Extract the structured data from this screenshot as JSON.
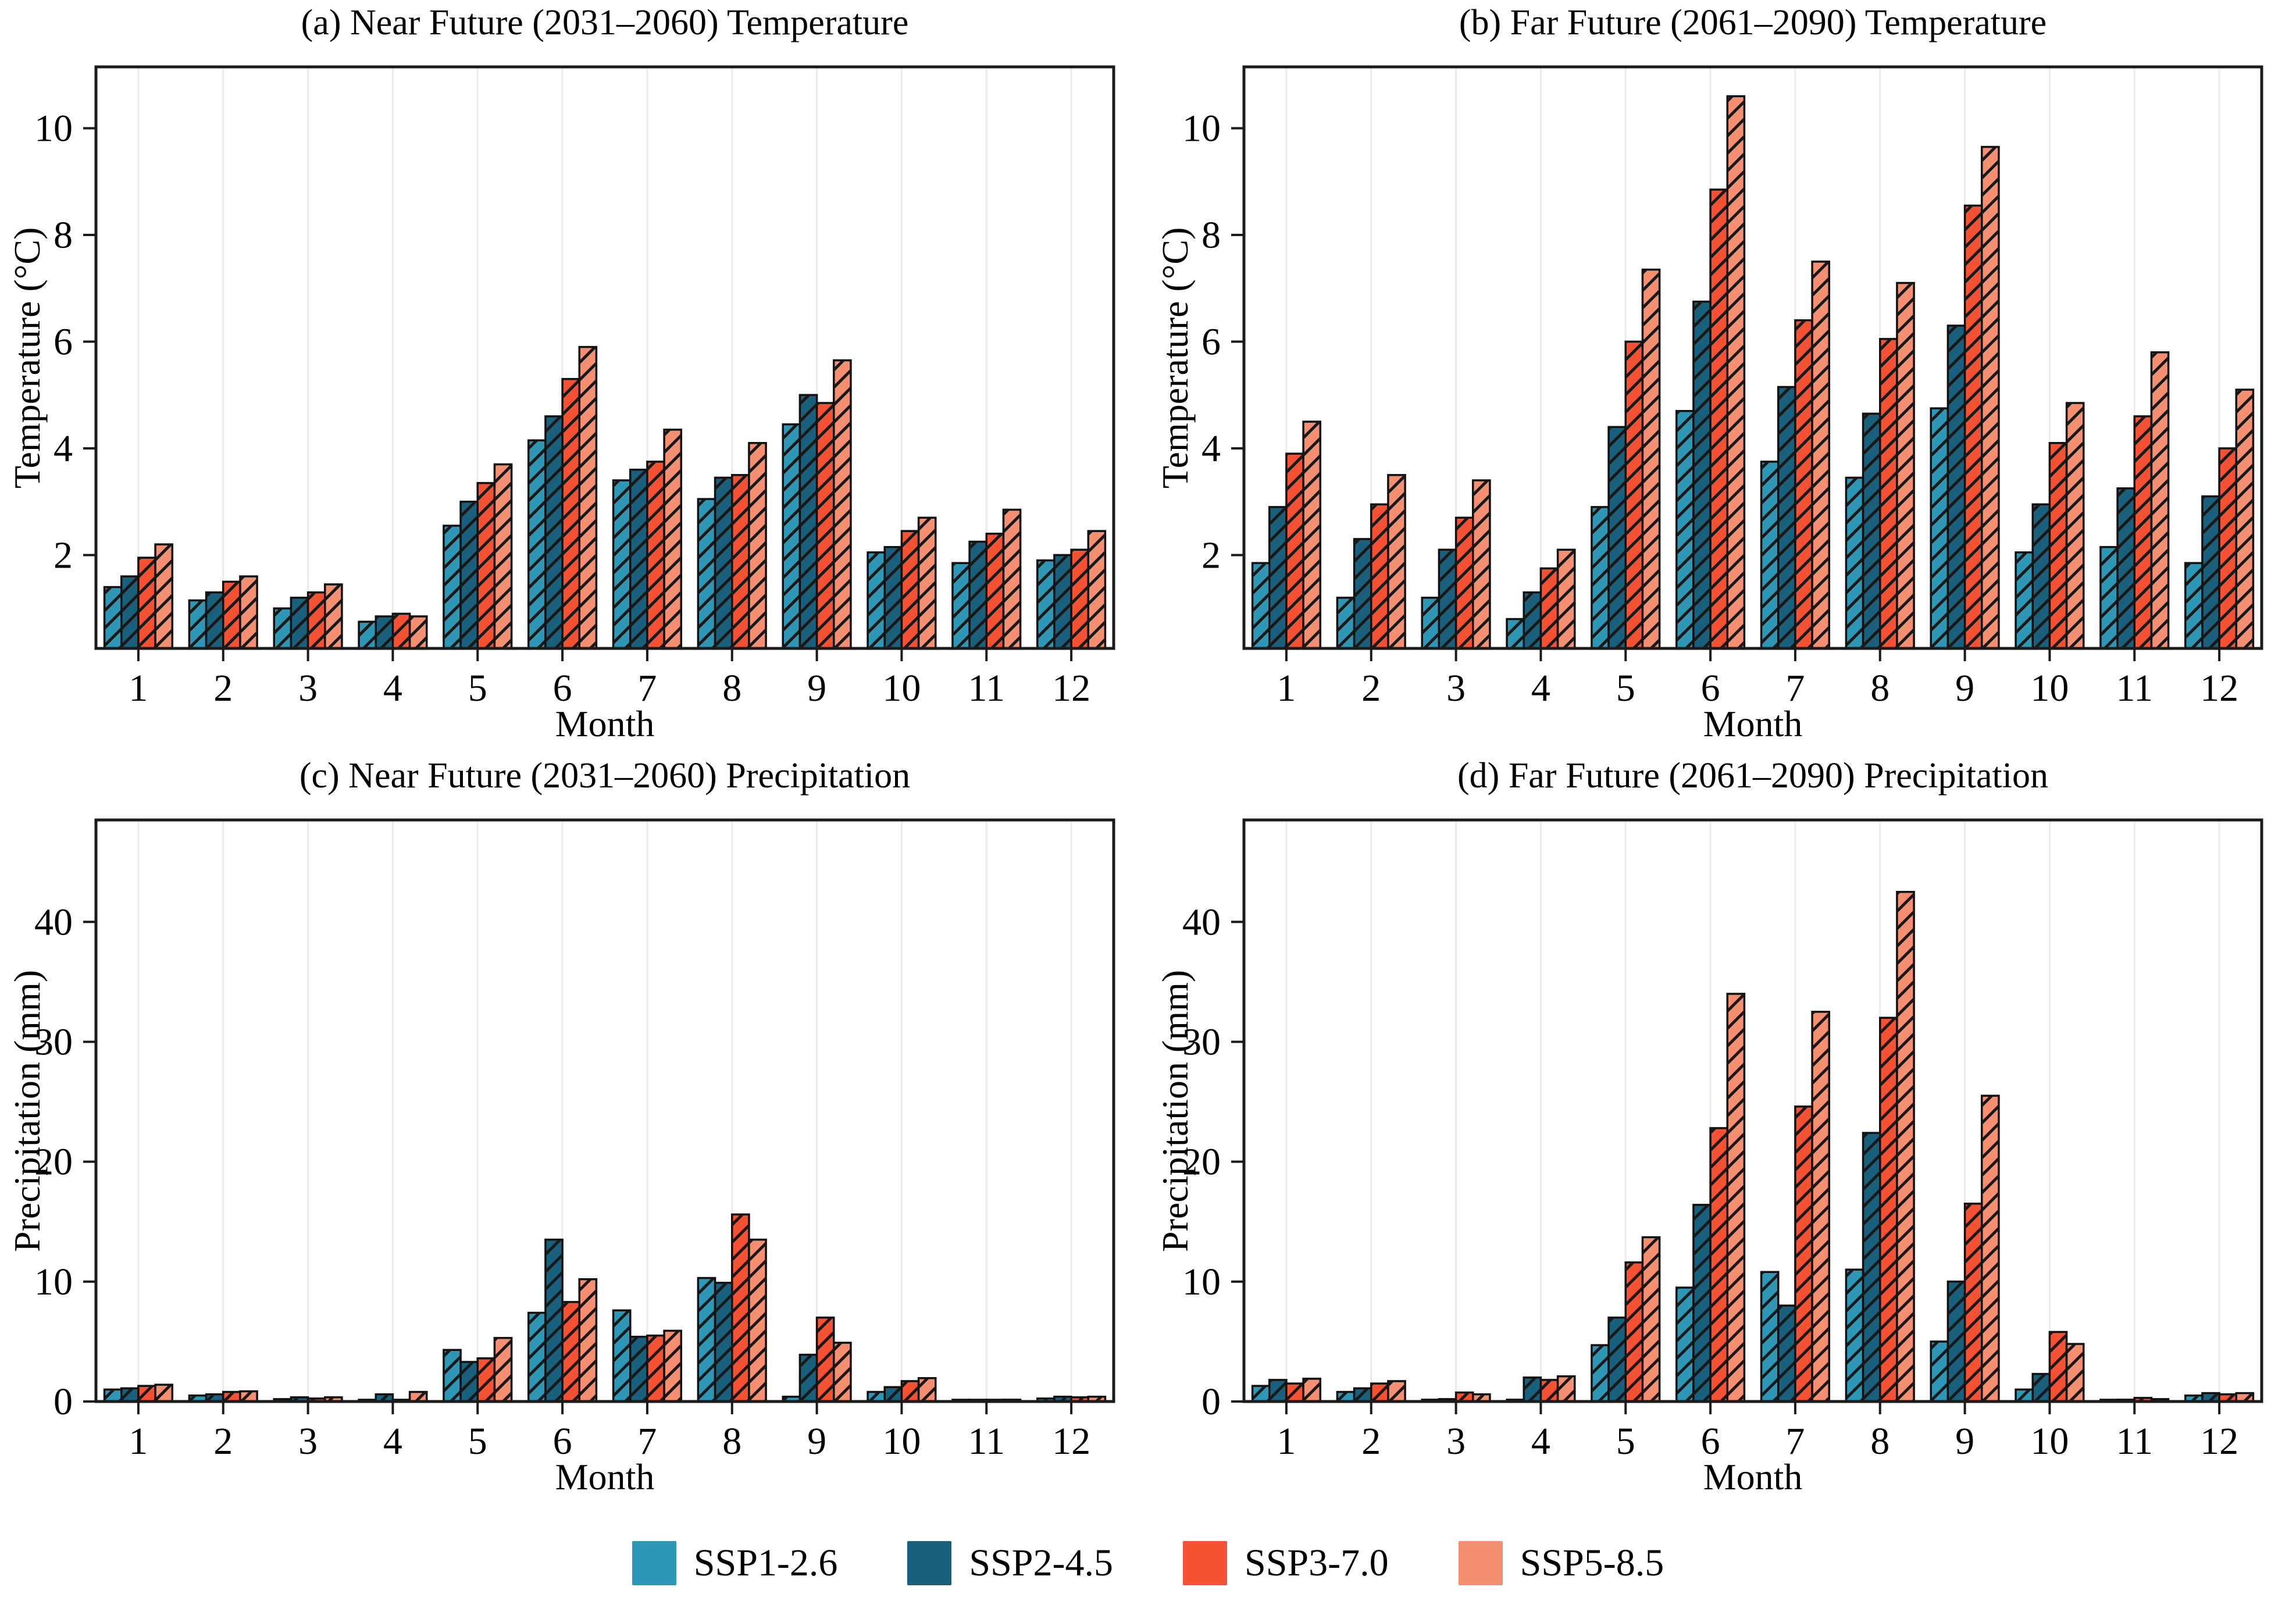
{
  "figure": {
    "background": "#ffffff",
    "bar_edge_color": "#101010",
    "hatch_color": "#181818",
    "gridline_color": "#ebebeb",
    "spine_color": "#1b1b1b",
    "legend": {
      "items": [
        {
          "label": "SSP1-2.6",
          "color": "#2f97b6"
        },
        {
          "label": "SSP2-4.5",
          "color": "#19607d"
        },
        {
          "label": "SSP3-7.0",
          "color": "#f45232"
        },
        {
          "label": "SSP5-8.5",
          "color": "#f58f72"
        }
      ]
    }
  },
  "chart_data": [
    {
      "type": "bar",
      "panel": "a",
      "title": "(a) Near Future (2031–2060) Temperature",
      "xlabel": "Month",
      "ylabel": "Temperature (°C)",
      "categories": [
        "1",
        "2",
        "3",
        "4",
        "5",
        "6",
        "7",
        "8",
        "9",
        "10",
        "11",
        "12"
      ],
      "ylim": [
        0.25,
        11.15
      ],
      "yticks": [
        2,
        4,
        6,
        8,
        10
      ],
      "grid": "vertical",
      "legend_position": "none",
      "series": [
        {
          "name": "SSP1-2.6",
          "values": [
            1.4,
            1.15,
            1.0,
            0.75,
            2.55,
            4.15,
            3.4,
            3.05,
            4.45,
            2.05,
            1.85,
            1.9
          ]
        },
        {
          "name": "SSP2-4.5",
          "values": [
            1.6,
            1.3,
            1.2,
            0.85,
            3.0,
            4.6,
            3.6,
            3.45,
            5.0,
            2.15,
            2.25,
            2.0
          ]
        },
        {
          "name": "SSP3-7.0",
          "values": [
            1.95,
            1.5,
            1.3,
            0.9,
            3.35,
            5.3,
            3.75,
            3.5,
            4.85,
            2.45,
            2.4,
            2.1
          ]
        },
        {
          "name": "SSP5-8.5",
          "values": [
            2.2,
            1.6,
            1.45,
            0.85,
            3.7,
            5.9,
            4.35,
            4.1,
            5.65,
            2.7,
            2.85,
            2.45
          ]
        }
      ]
    },
    {
      "type": "bar",
      "panel": "b",
      "title": "(b) Far Future (2061–2090) Temperature",
      "xlabel": "Month",
      "ylabel": "Temperature (°C)",
      "categories": [
        "1",
        "2",
        "3",
        "4",
        "5",
        "6",
        "7",
        "8",
        "9",
        "10",
        "11",
        "12"
      ],
      "ylim": [
        0.25,
        11.15
      ],
      "yticks": [
        2,
        4,
        6,
        8,
        10
      ],
      "grid": "vertical",
      "legend_position": "none",
      "series": [
        {
          "name": "SSP1-2.6",
          "values": [
            1.85,
            1.2,
            1.2,
            0.8,
            2.9,
            4.7,
            3.75,
            3.45,
            4.75,
            2.05,
            2.15,
            1.85
          ]
        },
        {
          "name": "SSP2-4.5",
          "values": [
            2.9,
            2.3,
            2.1,
            1.3,
            4.4,
            6.75,
            5.15,
            4.65,
            6.3,
            2.95,
            3.25,
            3.1
          ]
        },
        {
          "name": "SSP3-7.0",
          "values": [
            3.9,
            2.95,
            2.7,
            1.75,
            6.0,
            8.85,
            6.4,
            6.05,
            8.55,
            4.1,
            4.6,
            4.0
          ]
        },
        {
          "name": "SSP5-8.5",
          "values": [
            4.5,
            3.5,
            3.4,
            2.1,
            7.35,
            10.6,
            7.5,
            7.1,
            9.65,
            4.85,
            5.8,
            5.1
          ]
        }
      ]
    },
    {
      "type": "bar",
      "panel": "c",
      "title": "(c) Near Future (2031–2060) Precipitation",
      "xlabel": "Month",
      "ylabel": "Precipitation (mm)",
      "categories": [
        "1",
        "2",
        "3",
        "4",
        "5",
        "6",
        "7",
        "8",
        "9",
        "10",
        "11",
        "12"
      ],
      "ylim": [
        0,
        48.5
      ],
      "yticks": [
        0,
        10,
        20,
        30,
        40
      ],
      "grid": "vertical",
      "legend_position": "none",
      "series": [
        {
          "name": "SSP1-2.6",
          "values": [
            1.0,
            0.5,
            0.2,
            0.1,
            4.3,
            7.4,
            7.6,
            10.3,
            0.4,
            0.8,
            0.05,
            0.25
          ]
        },
        {
          "name": "SSP2-4.5",
          "values": [
            1.1,
            0.6,
            0.35,
            0.6,
            3.3,
            13.5,
            5.4,
            9.9,
            3.9,
            1.2,
            0.1,
            0.4
          ]
        },
        {
          "name": "SSP3-7.0",
          "values": [
            1.3,
            0.8,
            0.25,
            0.1,
            3.6,
            8.3,
            5.5,
            15.6,
            7.0,
            1.7,
            0.1,
            0.35
          ]
        },
        {
          "name": "SSP5-8.5",
          "values": [
            1.4,
            0.85,
            0.35,
            0.8,
            5.3,
            10.2,
            5.9,
            13.5,
            4.9,
            1.95,
            0.15,
            0.4
          ]
        }
      ]
    },
    {
      "type": "bar",
      "panel": "d",
      "title": "(d) Far Future (2061–2090) Precipitation",
      "xlabel": "Month",
      "ylabel": "Precipitation (mm)",
      "categories": [
        "1",
        "2",
        "3",
        "4",
        "5",
        "6",
        "7",
        "8",
        "9",
        "10",
        "11",
        "12"
      ],
      "ylim": [
        0,
        48.5
      ],
      "yticks": [
        0,
        10,
        20,
        30,
        40
      ],
      "grid": "vertical",
      "legend_position": "bottom-center-shared",
      "series": [
        {
          "name": "SSP1-2.6",
          "values": [
            1.3,
            0.8,
            0.15,
            0.15,
            4.7,
            9.5,
            10.8,
            11.0,
            5.0,
            1.0,
            0.1,
            0.5
          ]
        },
        {
          "name": "SSP2-4.5",
          "values": [
            1.8,
            1.1,
            0.2,
            2.0,
            7.0,
            16.4,
            8.0,
            22.4,
            10.0,
            2.3,
            0.15,
            0.7
          ]
        },
        {
          "name": "SSP3-7.0",
          "values": [
            1.5,
            1.5,
            0.75,
            1.8,
            11.6,
            22.8,
            24.6,
            32.0,
            16.5,
            5.8,
            0.3,
            0.6
          ]
        },
        {
          "name": "SSP5-8.5",
          "values": [
            1.9,
            1.7,
            0.6,
            2.1,
            13.7,
            34.0,
            32.5,
            42.5,
            25.5,
            4.8,
            0.2,
            0.7
          ]
        }
      ]
    }
  ]
}
